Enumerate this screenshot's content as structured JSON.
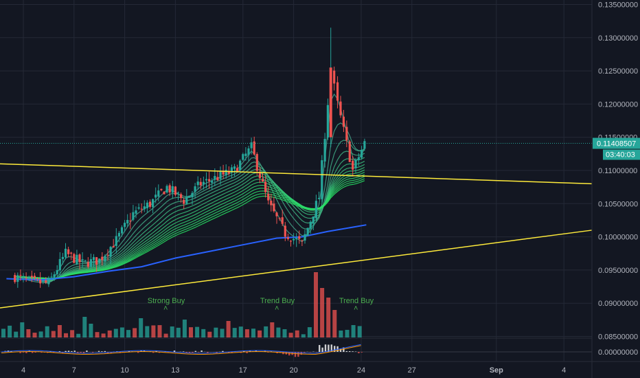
{
  "colors": {
    "background": "#131722",
    "grid": "#242936",
    "up": "#26a69a",
    "down": "#ef5350",
    "trendline": "#ffeb3b",
    "long_ma": "#2962ff",
    "signal_text": "#4caf50",
    "price_tag": "#26a69a",
    "axis_text": "#b2b5be"
  },
  "price_axis": {
    "ticks": [
      "0.13500000",
      "0.13000000",
      "0.12500000",
      "0.12000000",
      "0.11500000",
      "0.11000000",
      "0.10500000",
      "0.10000000",
      "0.09500000",
      "0.09000000",
      "0.08500000"
    ],
    "current_price": "0.11408507",
    "countdown": "03:40:03"
  },
  "indicator_axis": {
    "tick": "0.00000000"
  },
  "time_axis": [
    {
      "label": "4",
      "bold": false
    },
    {
      "label": "7",
      "bold": false
    },
    {
      "label": "10",
      "bold": false
    },
    {
      "label": "13",
      "bold": false
    },
    {
      "label": "17",
      "bold": false
    },
    {
      "label": "20",
      "bold": false
    },
    {
      "label": "24",
      "bold": false
    },
    {
      "label": "27",
      "bold": false
    },
    {
      "label": "Sep",
      "bold": true
    },
    {
      "label": "4",
      "bold": false
    }
  ],
  "signals": [
    {
      "label": "Strong Buy",
      "date_index": 5.6
    },
    {
      "label": "Trend Buy",
      "date_index": 9.3
    },
    {
      "label": "Trend Buy",
      "date_index": 12.3
    }
  ],
  "chart_data": {
    "type": "candlestick",
    "x_unit": "day of month (Aug, continuing into Sep)",
    "y_unit": "price",
    "ylim": [
      0.0848,
      0.1365
    ],
    "grid": true,
    "series": [
      {
        "name": "",
        "type": "candlestick",
        "points": [
          {
            "x": 3.5,
            "close": 0.094
          },
          {
            "x": 4.5,
            "close": 0.0932
          },
          {
            "x": 5.5,
            "close": 0.093
          },
          {
            "x": 6.5,
            "close": 0.0975
          },
          {
            "x": 7.5,
            "close": 0.096
          },
          {
            "x": 8.5,
            "close": 0.0965
          },
          {
            "x": 9.5,
            "close": 0.0995
          },
          {
            "x": 10.5,
            "close": 0.1035
          },
          {
            "x": 11.5,
            "close": 0.105
          },
          {
            "x": 12.5,
            "close": 0.1075
          },
          {
            "x": 13.5,
            "close": 0.1055
          },
          {
            "x": 14.5,
            "close": 0.108
          },
          {
            "x": 15.5,
            "close": 0.109
          },
          {
            "x": 16.5,
            "close": 0.11
          },
          {
            "x": 17.5,
            "close": 0.1135
          },
          {
            "x": 18.5,
            "close": 0.105
          },
          {
            "x": 19.5,
            "close": 0.1005
          },
          {
            "x": 20.5,
            "close": 0.099
          },
          {
            "x": 21.5,
            "close": 0.106
          },
          {
            "x": 22.2,
            "close": 0.125
          },
          {
            "x": 22.6,
            "close": 0.12
          },
          {
            "x": 23.5,
            "close": 0.11
          },
          {
            "x": 24.2,
            "close": 0.1141
          }
        ]
      },
      {
        "name": "",
        "type": "line",
        "points": [
          {
            "x": 3.0,
            "y": 0.0937
          },
          {
            "x": 5.0,
            "y": 0.0935
          },
          {
            "x": 7.0,
            "y": 0.094
          },
          {
            "x": 9.0,
            "y": 0.0948
          },
          {
            "x": 11.0,
            "y": 0.0955
          },
          {
            "x": 13.0,
            "y": 0.0968
          },
          {
            "x": 15.0,
            "y": 0.0978
          },
          {
            "x": 17.0,
            "y": 0.0988
          },
          {
            "x": 19.0,
            "y": 0.0998
          },
          {
            "x": 20.5,
            "y": 0.1
          },
          {
            "x": 22.0,
            "y": 0.1008
          },
          {
            "x": 24.3,
            "y": 0.1018
          }
        ]
      }
    ]
  }
}
